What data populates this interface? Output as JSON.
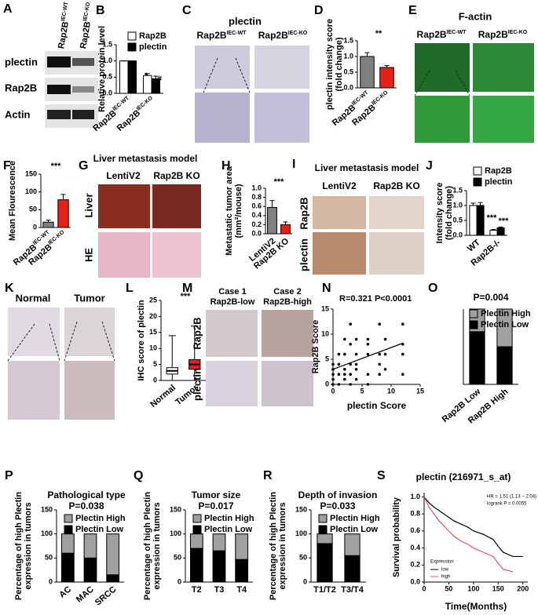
{
  "panel_labels": [
    "A",
    "B",
    "C",
    "D",
    "E",
    "F",
    "G",
    "H",
    "I",
    "J",
    "K",
    "L",
    "M",
    "N",
    "O",
    "P",
    "Q",
    "R",
    "S"
  ],
  "panels": {
    "A": {
      "columns": [
        {
          "text": "Rap2B",
          "sup": "IEC-WT"
        },
        {
          "text": "Rap2B",
          "sup": "IEC-KO"
        }
      ],
      "rows": [
        "plectin",
        "Rap2B",
        "Actin"
      ]
    },
    "C": {
      "title": "plectin",
      "columns": [
        {
          "text": "Rap2B",
          "sup": "IEC-WT"
        },
        {
          "text": "Rap2B",
          "sup": "IEC-KO"
        }
      ]
    },
    "E": {
      "title": "F-actin",
      "columns": [
        {
          "text": "Rap2B",
          "sup": "IEC-WT"
        },
        {
          "text": "Rap2B",
          "sup": "IEC-KO"
        }
      ]
    },
    "G": {
      "title": "Liver metastasis model",
      "columns": [
        "LentiV2",
        "Rap2B KO"
      ],
      "rows": [
        "Liver",
        "HE"
      ]
    },
    "I": {
      "title": "Liver metastasis model",
      "columns": [
        "LentiV2",
        "Rap2B KO"
      ],
      "rows": [
        "Rap2B",
        "plectin"
      ]
    },
    "K": {
      "columns": [
        "Normal",
        "Tumor"
      ]
    },
    "M": {
      "columns": [
        "Case 1",
        "Case 2"
      ],
      "column_subtitles": [
        "Rap2B-low",
        "Rap2B-high"
      ],
      "rows": [
        "Rap2B",
        "plectin"
      ]
    }
  },
  "chart_data": [
    {
      "type": "bar",
      "ylabel": "Relative protein level",
      "categories": [
        "Rap2B",
        "Rap2B"
      ],
      "category_superscripts": [
        "IEC-WT",
        "IEC-KO"
      ],
      "series": [
        {
          "name": "Rap2B",
          "color": "#ffffff",
          "values": [
            1,
            0.55
          ],
          "errors": [
            0,
            0.06
          ]
        },
        {
          "name": "plectin",
          "color": "#000000",
          "values": [
            1,
            0.45
          ],
          "errors": [
            0,
            0.08
          ]
        }
      ],
      "ylim": [
        0,
        1.5
      ],
      "yticks": [
        {
          "value": 0,
          "label": "0.0"
        },
        0.5,
        {
          "value": 1,
          "label": "1.0"
        },
        1.5
      ],
      "annotations": [
        "*",
        "#"
      ]
    },
    {
      "type": "bar",
      "ylabel": [
        "plectin intensity score",
        "(fold change)"
      ],
      "categories": [
        "Rap2B",
        "Rap2B"
      ],
      "category_superscripts": [
        "IEC-WT",
        "IEC-KO"
      ],
      "values": [
        1,
        0.65
      ],
      "errors": [
        0.12,
        0.06
      ],
      "colors": [
        "#808080",
        "#e8201a"
      ],
      "ylim": [
        0,
        1.5
      ],
      "yticks": [
        {
          "value": 0,
          "label": "0.0"
        },
        0.5,
        {
          "value": 1,
          "label": "1.0"
        },
        1.5
      ],
      "annotations": [
        "**"
      ]
    },
    {
      "type": "bar",
      "ylabel": "Mean Flourescence",
      "categories": [
        "Rap2B",
        "Rap2B"
      ],
      "category_superscripts": [
        "IEC-WT",
        "IEC-KO"
      ],
      "values": [
        15,
        78
      ],
      "errors": [
        6,
        15
      ],
      "colors": [
        "#808080",
        "#e8201a"
      ],
      "ylim": [
        0,
        150
      ],
      "yticks": [
        0,
        50,
        100,
        150
      ],
      "annotations": [
        "***"
      ]
    },
    {
      "type": "bar",
      "ylabel": [
        "Metastatic tumor area",
        "(mm²/mouse)"
      ],
      "categories": [
        "LentiV2",
        "Rap2B KO"
      ],
      "values": [
        0.58,
        0.2
      ],
      "errors": [
        0.15,
        0.06
      ],
      "colors": [
        "#808080",
        "#e8201a"
      ],
      "ylim": [
        0,
        1
      ],
      "yticks": [
        {
          "value": 0,
          "label": "0.0"
        },
        0.2,
        0.4,
        0.6,
        0.8,
        {
          "value": 1,
          "label": "1.0"
        }
      ],
      "annotations": [
        "***"
      ]
    },
    {
      "type": "bar",
      "ylabel": [
        "Intensity score",
        "(fold change)"
      ],
      "categories": [
        "WT",
        "Rap2B-/-"
      ],
      "series": [
        {
          "name": "Rap2B",
          "color": "#ffffff",
          "values": [
            1,
            0.17
          ],
          "errors": [
            0.08,
            0.03
          ]
        },
        {
          "name": "plectin",
          "color": "#000000",
          "values": [
            1,
            0.25
          ],
          "errors": [
            0.1,
            0.03
          ]
        }
      ],
      "ylim": [
        0,
        1.5
      ],
      "yticks": [
        {
          "value": 0,
          "label": "0.0"
        },
        0.5,
        {
          "value": 1,
          "label": "1.0"
        },
        1.5
      ],
      "annotations": [
        "***",
        "***"
      ]
    },
    {
      "type": "box",
      "ylabel": "IHC score of plectin",
      "categories": [
        "Normal",
        "Tumor"
      ],
      "colors": [
        "#ffffff",
        "#e8201a"
      ],
      "boxes": [
        {
          "min": 0,
          "q1": 2,
          "median": 3,
          "q3": 4,
          "max": 14
        },
        {
          "min": 0,
          "q1": 3.5,
          "median": 5,
          "q3": 6.5,
          "max": 17
        }
      ],
      "ylim": [
        0,
        25
      ],
      "yticks": [
        0,
        5,
        10,
        15,
        20,
        25
      ],
      "annotations": [
        "***"
      ]
    },
    {
      "type": "scatter",
      "xlabel": "plectin Score",
      "ylabel": "Rap2B Score",
      "x": [
        0,
        0,
        0,
        0,
        0,
        1,
        1,
        1,
        1,
        2,
        2,
        2,
        2,
        2,
        3,
        3,
        3,
        3,
        3,
        4,
        4,
        4,
        4,
        4,
        6,
        6,
        6,
        6,
        6,
        8,
        8,
        8,
        8,
        9,
        9,
        9,
        12,
        12,
        12,
        12
      ],
      "values": [
        0,
        1,
        2,
        3,
        4,
        0,
        2,
        4,
        6,
        1,
        2,
        3,
        6,
        9,
        0,
        2,
        4,
        8,
        12,
        1,
        3,
        4,
        6,
        9,
        0,
        2,
        6,
        8,
        9,
        2,
        4,
        6,
        12,
        3,
        6,
        9,
        2,
        6,
        8,
        12
      ],
      "trendline": {
        "x": [
          0,
          12
        ],
        "values": [
          3,
          8.2
        ]
      },
      "xlim": [
        0,
        15
      ],
      "xticks": [
        0,
        5,
        10,
        15
      ],
      "ylim": [
        0,
        15
      ],
      "yticks": [
        0,
        5,
        10,
        15
      ],
      "annotations": [
        "R=0.321  P<0.0001"
      ]
    },
    {
      "type": "stacked_bar",
      "title": "P=0.004",
      "categories": [
        "Rap2B Low",
        "Rap2B High"
      ],
      "series": [
        {
          "name": "Plectin High",
          "color": "#a0a0a0",
          "values": [
            30,
            50
          ]
        },
        {
          "name": "Plectin Low",
          "color": "#000000",
          "values": [
            70,
            50
          ]
        }
      ],
      "ylim": [
        0,
        100
      ]
    },
    {
      "type": "stacked_bar",
      "title": "Pathological type",
      "subtitle": "P=0.038",
      "ylabel": [
        "Percentage of high Plectin",
        "expression in tumors"
      ],
      "categories": [
        "AC",
        "MAC",
        "SRCC"
      ],
      "series": [
        {
          "name": "Plectin High",
          "color": "#a0a0a0",
          "values": [
            40,
            50,
            85
          ]
        },
        {
          "name": "Plectin Low",
          "color": "#000000",
          "values": [
            60,
            50,
            15
          ]
        }
      ],
      "ylim": [
        0,
        150
      ],
      "yticks": [
        0,
        50,
        100,
        150
      ]
    },
    {
      "type": "stacked_bar",
      "title": "Tumor size",
      "subtitle": "P=0.017",
      "ylabel": [
        "Percentage of high Plectin",
        "expression in tumors"
      ],
      "categories": [
        "T2",
        "T3",
        "T4"
      ],
      "series": [
        {
          "name": "Plectin High",
          "color": "#a0a0a0",
          "values": [
            30,
            35,
            53
          ]
        },
        {
          "name": "Plectin Low",
          "color": "#000000",
          "values": [
            70,
            65,
            47
          ]
        }
      ],
      "ylim": [
        0,
        150
      ],
      "yticks": [
        0,
        50,
        100,
        150
      ]
    },
    {
      "type": "stacked_bar",
      "title": "Depth of invasion",
      "subtitle": "P=0.033",
      "ylabel": [
        "Percentage of high Plectin",
        "expression in tumors"
      ],
      "categories": [
        "T1/T2",
        "T3/T4"
      ],
      "series": [
        {
          "name": "Plectin High",
          "color": "#a0a0a0",
          "values": [
            20,
            45
          ]
        },
        {
          "name": "Plectin Low",
          "color": "#000000",
          "values": [
            80,
            55
          ]
        }
      ],
      "ylim": [
        0,
        150
      ],
      "yticks": [
        0,
        50,
        100,
        150
      ]
    },
    {
      "type": "line",
      "title": "plectin (216971_s_at)",
      "xlabel": "Time(Months)",
      "ylabel": "Survival probability",
      "legend_title": "Expression",
      "series": [
        {
          "name": "low",
          "color": "#000000",
          "x": [
            0,
            10,
            20,
            30,
            40,
            50,
            60,
            75,
            90,
            100,
            120,
            140,
            150,
            160,
            180,
            200
          ],
          "values": [
            1,
            0.93,
            0.88,
            0.84,
            0.8,
            0.76,
            0.72,
            0.68,
            0.64,
            0.6,
            0.56,
            0.5,
            0.42,
            0.35,
            0.3,
            0.3
          ]
        },
        {
          "name": "high",
          "color": "#e8506a",
          "x": [
            0,
            10,
            20,
            30,
            40,
            50,
            60,
            75,
            90,
            100,
            120,
            140,
            150,
            160,
            180
          ],
          "values": [
            1,
            0.88,
            0.8,
            0.72,
            0.66,
            0.6,
            0.54,
            0.48,
            0.44,
            0.4,
            0.35,
            0.3,
            0.22,
            0.15,
            0.12
          ]
        }
      ],
      "xlim": [
        0,
        210
      ],
      "xticks": [
        0,
        50,
        100,
        150,
        200
      ],
      "ylim": [
        0,
        1.05
      ],
      "yticks": [
        {
          "value": 0,
          "label": "0.0"
        },
        0.2,
        0.4,
        0.6,
        0.8,
        {
          "value": 1,
          "label": "1.0"
        }
      ],
      "annotations": [
        "HR = 1.51 (1.13 − 2.04)",
        "logrank P = 0.0055"
      ]
    }
  ]
}
